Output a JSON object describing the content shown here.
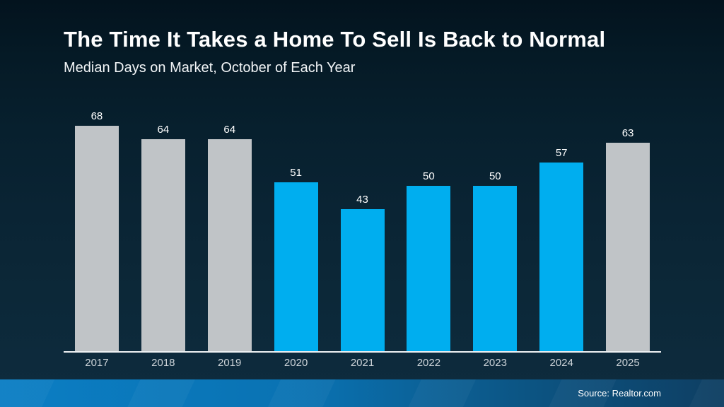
{
  "header": {
    "title": "The Time It Takes a Home To Sell Is Back to Normal",
    "subtitle": "Median Days on Market, October of Each Year"
  },
  "footer": {
    "source": "Source: Realtor.com"
  },
  "chart_data": {
    "type": "bar",
    "title": "The Time It Takes a Home To Sell Is Back to Normal",
    "subtitle": "Median Days on Market, October of Each Year",
    "categories": [
      "2017",
      "2018",
      "2019",
      "2020",
      "2021",
      "2022",
      "2023",
      "2024",
      "2025"
    ],
    "values": [
      68,
      64,
      64,
      51,
      43,
      50,
      50,
      57,
      63
    ],
    "bar_colors": [
      "gray",
      "gray",
      "gray",
      "blue",
      "blue",
      "blue",
      "blue",
      "blue",
      "gray"
    ],
    "palette": {
      "gray": "#c0c4c7",
      "blue": "#00aeef"
    },
    "value_labels": true,
    "xlabel": "",
    "ylabel": "",
    "ylim": [
      0,
      73
    ],
    "grid": false,
    "legend": false,
    "background": "#0a2230",
    "axis_line_color": "#eef1f3"
  }
}
